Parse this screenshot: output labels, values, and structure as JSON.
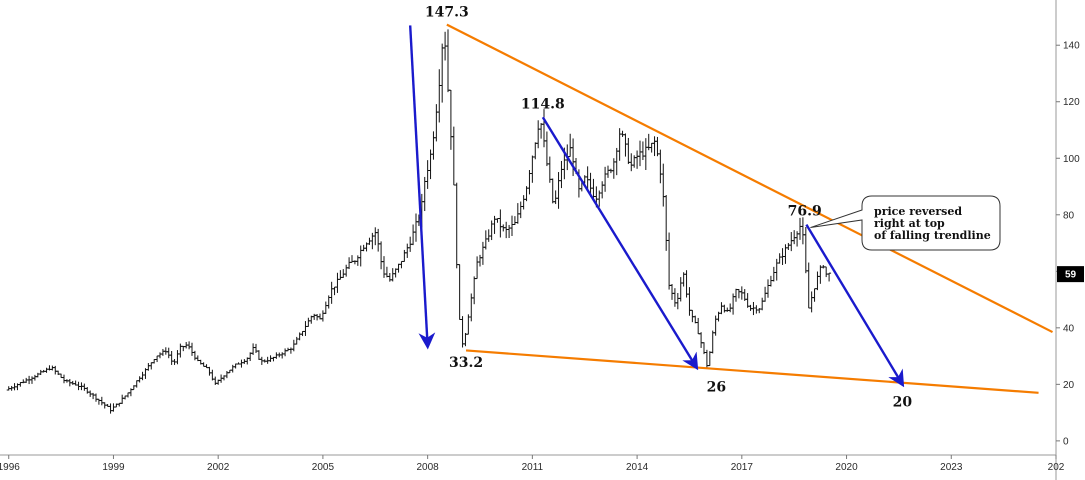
{
  "chart_data": {
    "type": "bar",
    "subtype": "ohlc-monthly-price-chart",
    "x_axis": {
      "ticks": [
        "1996",
        "1999",
        "2002",
        "2005",
        "2008",
        "2011",
        "2014",
        "2017",
        "2020",
        "2023",
        "202"
      ],
      "range": [
        1995.75,
        2026.0
      ]
    },
    "y_axis": {
      "position": "right",
      "ticks": [
        0,
        20,
        40,
        60,
        80,
        100,
        120,
        140
      ],
      "range": [
        -5,
        156
      ]
    },
    "current_price": {
      "label": "59",
      "value": 59,
      "color": "#000000"
    },
    "price_series": {
      "name": "",
      "color": "#111111",
      "points": [
        [
          1996.0,
          18
        ],
        [
          1996.5,
          21
        ],
        [
          1997.0,
          24
        ],
        [
          1997.3,
          26
        ],
        [
          1997.7,
          21
        ],
        [
          1998.0,
          20
        ],
        [
          1998.3,
          18
        ],
        [
          1998.6,
          15
        ],
        [
          1998.9,
          12
        ],
        [
          1999.0,
          11
        ],
        [
          1999.2,
          13
        ],
        [
          1999.5,
          17
        ],
        [
          1999.8,
          22
        ],
        [
          2000.0,
          25
        ],
        [
          2000.3,
          30
        ],
        [
          2000.6,
          32
        ],
        [
          2000.8,
          27
        ],
        [
          2001.0,
          33
        ],
        [
          2001.2,
          34
        ],
        [
          2001.5,
          28
        ],
        [
          2001.8,
          25
        ],
        [
          2002.0,
          20
        ],
        [
          2002.3,
          24
        ],
        [
          2002.6,
          27
        ],
        [
          2002.9,
          29
        ],
        [
          2003.1,
          33
        ],
        [
          2003.3,
          28
        ],
        [
          2003.6,
          29
        ],
        [
          2003.9,
          31
        ],
        [
          2004.2,
          33
        ],
        [
          2004.5,
          39
        ],
        [
          2004.8,
          45
        ],
        [
          2005.0,
          43
        ],
        [
          2005.3,
          53
        ],
        [
          2005.6,
          58
        ],
        [
          2005.8,
          62
        ],
        [
          2006.0,
          64
        ],
        [
          2006.3,
          70
        ],
        [
          2006.6,
          74
        ],
        [
          2006.8,
          60
        ],
        [
          2007.0,
          57
        ],
        [
          2007.3,
          63
        ],
        [
          2007.6,
          71
        ],
        [
          2007.9,
          82
        ],
        [
          2008.0,
          92
        ],
        [
          2008.2,
          103
        ],
        [
          2008.4,
          125
        ],
        [
          2008.5,
          140
        ],
        [
          2008.55,
          147.3
        ],
        [
          2008.7,
          118
        ],
        [
          2008.8,
          100
        ],
        [
          2008.9,
          68
        ],
        [
          2009.0,
          42
        ],
        [
          2009.1,
          33.2
        ],
        [
          2009.3,
          48
        ],
        [
          2009.5,
          63
        ],
        [
          2009.8,
          72
        ],
        [
          2010.0,
          79
        ],
        [
          2010.3,
          74
        ],
        [
          2010.6,
          77
        ],
        [
          2010.9,
          89
        ],
        [
          2011.1,
          102
        ],
        [
          2011.3,
          114.8
        ],
        [
          2011.5,
          98
        ],
        [
          2011.7,
          82
        ],
        [
          2011.9,
          96
        ],
        [
          2012.2,
          104
        ],
        [
          2012.4,
          88
        ],
        [
          2012.6,
          93
        ],
        [
          2012.9,
          86
        ],
        [
          2013.1,
          92
        ],
        [
          2013.4,
          98
        ],
        [
          2013.6,
          110
        ],
        [
          2013.9,
          97
        ],
        [
          2014.1,
          101
        ],
        [
          2014.4,
          103
        ],
        [
          2014.6,
          106
        ],
        [
          2014.8,
          92
        ],
        [
          2015.0,
          55
        ],
        [
          2015.2,
          48
        ],
        [
          2015.4,
          60
        ],
        [
          2015.6,
          45
        ],
        [
          2015.8,
          40
        ],
        [
          2016.0,
          31
        ],
        [
          2016.1,
          26
        ],
        [
          2016.3,
          42
        ],
        [
          2016.5,
          48
        ],
        [
          2016.7,
          45
        ],
        [
          2016.9,
          53
        ],
        [
          2017.1,
          52
        ],
        [
          2017.3,
          47
        ],
        [
          2017.6,
          47
        ],
        [
          2017.9,
          57
        ],
        [
          2018.1,
          63
        ],
        [
          2018.3,
          67
        ],
        [
          2018.6,
          73
        ],
        [
          2018.8,
          76.9
        ],
        [
          2018.9,
          62
        ],
        [
          2019.0,
          47
        ],
        [
          2019.2,
          56
        ],
        [
          2019.4,
          63
        ],
        [
          2019.5,
          59
        ]
      ]
    },
    "trendlines": [
      {
        "color": "#f57c00",
        "from": [
          2008.55,
          147.3
        ],
        "to": [
          2025.9,
          38.5
        ]
      },
      {
        "color": "#f57c00",
        "from": [
          2009.1,
          32.0
        ],
        "to": [
          2025.5,
          17.0
        ]
      }
    ],
    "arrows": [
      {
        "color": "#1a1acc",
        "from": [
          2007.5,
          147.0
        ],
        "to": [
          2008.0,
          33.5
        ]
      },
      {
        "color": "#1a1acc",
        "from": [
          2011.3,
          114.5
        ],
        "to": [
          2015.7,
          26.0
        ]
      },
      {
        "color": "#1a1acc",
        "from": [
          2018.85,
          76.5
        ],
        "to": [
          2021.6,
          20.0
        ]
      }
    ],
    "annotations": [
      {
        "text": "147.3",
        "x": 2008.55,
        "y": 147.3
      },
      {
        "text": "114.8",
        "x": 2011.3,
        "y": 114.8
      },
      {
        "text": "33.2",
        "x": 2009.1,
        "y": 33.2
      },
      {
        "text": "26",
        "x": 2016.1,
        "y": 26
      },
      {
        "text": "76.9",
        "x": 2018.8,
        "y": 76.9
      },
      {
        "text": "20",
        "x": 2021.6,
        "y": 20
      }
    ],
    "callout": {
      "lines": [
        "price reversed",
        "right at top",
        "of falling trendline"
      ],
      "points_to": [
        2018.85,
        76.9
      ]
    },
    "title": "",
    "xlabel": "",
    "ylabel": "",
    "grid": false,
    "legend": "none"
  }
}
